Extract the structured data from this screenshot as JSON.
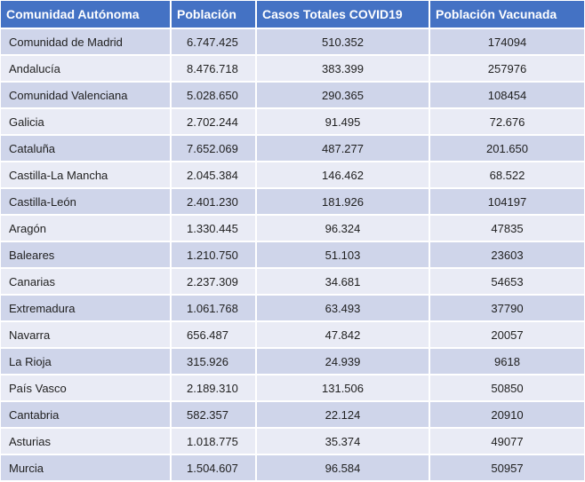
{
  "table": {
    "headers": [
      "Comunidad Autónoma",
      "Población",
      "Casos Totales COVID19",
      "Población Vacunada"
    ],
    "rows": [
      {
        "comunidad": "Comunidad de Madrid",
        "poblacion": "6.747.425",
        "casos": "510.352",
        "vacunada": "174094"
      },
      {
        "comunidad": "Andalucía",
        "poblacion": "8.476.718",
        "casos": "383.399",
        "vacunada": "257976"
      },
      {
        "comunidad": "Comunidad Valenciana",
        "poblacion": "5.028.650",
        "casos": "290.365",
        "vacunada": "108454"
      },
      {
        "comunidad": "Galicia",
        "poblacion": "2.702.244",
        "casos": "91.495",
        "vacunada": "72.676"
      },
      {
        "comunidad": "Cataluña",
        "poblacion": "7.652.069",
        "casos": "487.277",
        "vacunada": "201.650"
      },
      {
        "comunidad": "Castilla-La Mancha",
        "poblacion": "2.045.384",
        "casos": "146.462",
        "vacunada": "68.522"
      },
      {
        "comunidad": "Castilla-León",
        "poblacion": "2.401.230",
        "casos": "181.926",
        "vacunada": "104197"
      },
      {
        "comunidad": "Aragón",
        "poblacion": "1.330.445",
        "casos": "96.324",
        "vacunada": "47835"
      },
      {
        "comunidad": "Baleares",
        "poblacion": "1.210.750",
        "casos": "51.103",
        "vacunada": "23603"
      },
      {
        "comunidad": "Canarias",
        "poblacion": "2.237.309",
        "casos": "34.681",
        "vacunada": "54653"
      },
      {
        "comunidad": "Extremadura",
        "poblacion": "1.061.768",
        "casos": "63.493",
        "vacunada": "37790"
      },
      {
        "comunidad": "Navarra",
        "poblacion": "656.487",
        "casos": "47.842",
        "vacunada": "20057"
      },
      {
        "comunidad": "La Rioja",
        "poblacion": "315.926",
        "casos": "24.939",
        "vacunada": "9618"
      },
      {
        "comunidad": "País Vasco",
        "poblacion": "2.189.310",
        "casos": "131.506",
        "vacunada": "50850"
      },
      {
        "comunidad": "Cantabria",
        "poblacion": "582.357",
        "casos": "22.124",
        "vacunada": "20910"
      },
      {
        "comunidad": "Asturias",
        "poblacion": "1.018.775",
        "casos": "35.374",
        "vacunada": "49077"
      },
      {
        "comunidad": "Murcia",
        "poblacion": "1.504.607",
        "casos": "96.584",
        "vacunada": "50957"
      }
    ]
  }
}
